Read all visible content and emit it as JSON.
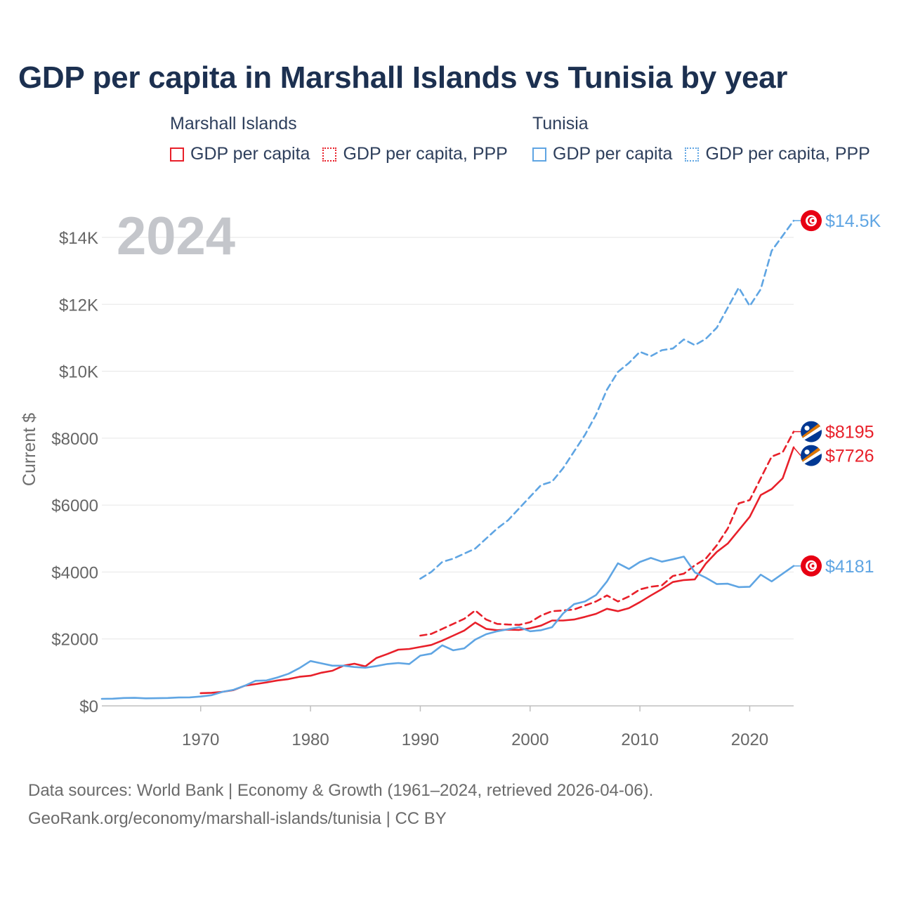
{
  "title": "GDP per capita in Marshall Islands vs Tunisia by year",
  "legend": {
    "groups": [
      {
        "name": "Marshall Islands",
        "items": [
          {
            "label": "GDP per capita",
            "color": "#e8202a",
            "style": "solid"
          },
          {
            "label": "GDP per capita, PPP",
            "color": "#e8202a",
            "style": "dotted"
          }
        ]
      },
      {
        "name": "Tunisia",
        "items": [
          {
            "label": "GDP per capita",
            "color": "#5fa5e3",
            "style": "solid"
          },
          {
            "label": "GDP per capita, PPP",
            "color": "#5fa5e3",
            "style": "dotted"
          }
        ]
      }
    ]
  },
  "footer": {
    "line1": "Data sources: World Bank | Economy & Growth (1961–2024, retrieved 2026-04-06).",
    "line2": "GeoRank.org/economy/marshall-islands/tunisia | CC BY"
  },
  "chart_data": {
    "type": "line",
    "title": "GDP per capita in Marshall Islands vs Tunisia by year",
    "xlabel": "",
    "ylabel": "Current $",
    "year_overlay": "2024",
    "xlim": [
      1961,
      2024
    ],
    "ylim": [
      0,
      15000
    ],
    "x_ticks": [
      1970,
      1980,
      1990,
      2000,
      2010,
      2020
    ],
    "y_ticks": [
      {
        "value": 0,
        "label": "$0"
      },
      {
        "value": 2000,
        "label": "$2000"
      },
      {
        "value": 4000,
        "label": "$4000"
      },
      {
        "value": 6000,
        "label": "$6000"
      },
      {
        "value": 8000,
        "label": "$8000"
      },
      {
        "value": 10000,
        "label": "$10K"
      },
      {
        "value": 12000,
        "label": "$12K"
      },
      {
        "value": 14000,
        "label": "$14K"
      }
    ],
    "grid": true,
    "legend_position": "top",
    "series": [
      {
        "name": "Tunisia GDP per capita, PPP",
        "country": "Tunisia",
        "color": "#5fa5e3",
        "dash": "dashed",
        "end_label": "$14.5K",
        "end_value": 14500,
        "x": [
          1990,
          1991,
          1992,
          1993,
          1994,
          1995,
          1996,
          1997,
          1998,
          1999,
          2000,
          2001,
          2002,
          2003,
          2004,
          2005,
          2006,
          2007,
          2008,
          2009,
          2010,
          2011,
          2012,
          2013,
          2014,
          2015,
          2016,
          2017,
          2018,
          2019,
          2020,
          2021,
          2022,
          2023,
          2024
        ],
        "values": [
          3800,
          4000,
          4300,
          4400,
          4550,
          4700,
          5000,
          5300,
          5550,
          5900,
          6250,
          6600,
          6700,
          7100,
          7600,
          8100,
          8700,
          9450,
          9980,
          10250,
          10580,
          10450,
          10630,
          10680,
          10950,
          10780,
          10970,
          11300,
          11900,
          12500,
          11950,
          12450,
          13600,
          14050,
          14500
        ]
      },
      {
        "name": "Marshall Islands GDP per capita, PPP",
        "country": "Marshall Islands",
        "color": "#e8202a",
        "dash": "dashed",
        "end_label": "$8195",
        "end_value": 8195,
        "x": [
          1990,
          1991,
          1992,
          1993,
          1994,
          1995,
          1996,
          1997,
          1998,
          1999,
          2000,
          2001,
          2002,
          2003,
          2004,
          2005,
          2006,
          2007,
          2008,
          2009,
          2010,
          2011,
          2012,
          2013,
          2014,
          2015,
          2016,
          2017,
          2018,
          2019,
          2020,
          2021,
          2022,
          2023,
          2024
        ],
        "values": [
          2100,
          2150,
          2300,
          2450,
          2600,
          2850,
          2580,
          2450,
          2430,
          2420,
          2500,
          2700,
          2830,
          2850,
          2880,
          3000,
          3120,
          3300,
          3120,
          3270,
          3480,
          3560,
          3600,
          3880,
          3950,
          4200,
          4400,
          4800,
          5300,
          6050,
          6150,
          6800,
          7450,
          7580,
          8195
        ]
      },
      {
        "name": "Marshall Islands GDP per capita",
        "country": "Marshall Islands",
        "color": "#e8202a",
        "dash": "solid",
        "end_label": "$7726",
        "end_value": 7726,
        "x": [
          1970,
          1971,
          1972,
          1973,
          1974,
          1975,
          1976,
          1977,
          1978,
          1979,
          1980,
          1981,
          1982,
          1983,
          1984,
          1985,
          1986,
          1987,
          1988,
          1989,
          1990,
          1991,
          1992,
          1993,
          1994,
          1995,
          1996,
          1997,
          1998,
          1999,
          2000,
          2001,
          2002,
          2003,
          2004,
          2005,
          2006,
          2007,
          2008,
          2009,
          2010,
          2011,
          2012,
          2013,
          2014,
          2015,
          2016,
          2017,
          2018,
          2019,
          2020,
          2021,
          2022,
          2023,
          2024
        ],
        "values": [
          380,
          390,
          420,
          470,
          600,
          650,
          700,
          760,
          800,
          870,
          900,
          990,
          1050,
          1200,
          1260,
          1180,
          1430,
          1550,
          1680,
          1700,
          1760,
          1820,
          1950,
          2100,
          2250,
          2490,
          2300,
          2260,
          2280,
          2270,
          2320,
          2400,
          2550,
          2550,
          2580,
          2660,
          2750,
          2900,
          2830,
          2920,
          3100,
          3300,
          3490,
          3700,
          3760,
          3780,
          4250,
          4600,
          4850,
          5250,
          5650,
          6300,
          6480,
          6800,
          7726
        ]
      },
      {
        "name": "Tunisia GDP per capita",
        "country": "Tunisia",
        "color": "#5fa5e3",
        "dash": "solid",
        "end_label": "$4181",
        "end_value": 4181,
        "x": [
          1961,
          1962,
          1963,
          1964,
          1965,
          1966,
          1967,
          1968,
          1969,
          1970,
          1971,
          1972,
          1973,
          1974,
          1975,
          1976,
          1977,
          1978,
          1979,
          1980,
          1981,
          1982,
          1983,
          1984,
          1985,
          1986,
          1987,
          1988,
          1989,
          1990,
          1991,
          1992,
          1993,
          1994,
          1995,
          1996,
          1997,
          1998,
          1999,
          2000,
          2001,
          2002,
          2003,
          2004,
          2005,
          2006,
          2007,
          2008,
          2009,
          2010,
          2011,
          2012,
          2013,
          2014,
          2015,
          2016,
          2017,
          2018,
          2019,
          2020,
          2021,
          2022,
          2023,
          2024
        ],
        "values": [
          210,
          215,
          235,
          240,
          225,
          228,
          235,
          250,
          255,
          280,
          320,
          420,
          480,
          600,
          750,
          760,
          850,
          960,
          1130,
          1340,
          1270,
          1200,
          1200,
          1160,
          1140,
          1190,
          1250,
          1280,
          1250,
          1500,
          1560,
          1810,
          1660,
          1720,
          1980,
          2140,
          2230,
          2290,
          2350,
          2230,
          2260,
          2350,
          2760,
          3040,
          3120,
          3310,
          3720,
          4260,
          4090,
          4300,
          4420,
          4310,
          4380,
          4460,
          3990,
          3830,
          3640,
          3650,
          3550,
          3560,
          3920,
          3720,
          3950,
          4181
        ]
      }
    ]
  }
}
